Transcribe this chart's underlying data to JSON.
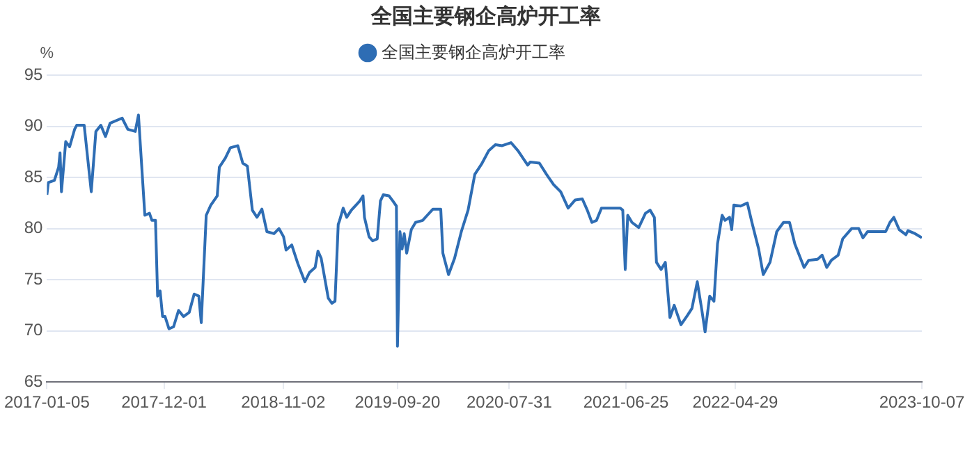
{
  "chart_data": {
    "type": "line",
    "title": "全国主要钢企高炉开工率",
    "ylabel": "%",
    "legend": "top",
    "grid": "y",
    "marker": "none",
    "ylim": [
      65,
      95
    ],
    "yticks": [
      65,
      70,
      75,
      80,
      85,
      90,
      95
    ],
    "xlim": [
      "2017-01-05",
      "2023-10-07"
    ],
    "xticks": [
      "2017-01-05",
      "2017-12-01",
      "2018-11-02",
      "2019-09-20",
      "2020-07-31",
      "2021-06-25",
      "2022-04-29",
      "2023-10-07"
    ],
    "x": [
      "2017-01-05",
      "2017-01-09",
      "2017-01-26",
      "2017-02-07",
      "2017-02-11",
      "2017-02-15",
      "2017-02-27",
      "2017-03-10",
      "2017-03-24",
      "2017-03-30",
      "2017-04-20",
      "2017-05-10",
      "2017-05-23",
      "2017-06-06",
      "2017-06-19",
      "2017-07-02",
      "2017-08-05",
      "2017-08-21",
      "2017-09-11",
      "2017-09-20",
      "2017-10-08",
      "2017-10-21",
      "2017-10-28",
      "2017-11-07",
      "2017-11-13",
      "2017-11-20",
      "2017-11-27",
      "2017-12-04",
      "2017-12-15",
      "2017-12-28",
      "2018-01-11",
      "2018-01-25",
      "2018-02-10",
      "2018-02-24",
      "2018-03-09",
      "2018-03-16",
      "2018-03-30",
      "2018-04-12",
      "2018-04-30",
      "2018-05-06",
      "2018-05-23",
      "2018-06-06",
      "2018-06-27",
      "2018-07-11",
      "2018-07-24",
      "2018-08-07",
      "2018-08-20",
      "2018-09-03",
      "2018-09-17",
      "2018-10-07",
      "2018-10-21",
      "2018-11-03",
      "2018-11-10",
      "2018-11-26",
      "2018-12-13",
      "2019-01-02",
      "2019-01-15",
      "2019-01-31",
      "2019-02-08",
      "2019-02-17",
      "2019-03-09",
      "2019-03-19",
      "2019-03-28",
      "2019-04-06",
      "2019-04-10",
      "2019-04-20",
      "2019-04-30",
      "2019-05-13",
      "2019-06-06",
      "2019-06-15",
      "2019-06-19",
      "2019-07-02",
      "2019-07-12",
      "2019-07-25",
      "2019-08-03",
      "2019-08-11",
      "2019-08-27",
      "2019-09-07",
      "2019-09-17",
      "2019-09-20",
      "2019-09-27",
      "2019-10-03",
      "2019-10-09",
      "2019-10-16",
      "2019-10-29",
      "2019-11-10",
      "2019-11-30",
      "2019-12-13",
      "2019-12-29",
      "2020-01-20",
      "2020-01-26",
      "2020-02-11",
      "2020-02-28",
      "2020-03-18",
      "2020-04-06",
      "2020-04-25",
      "2020-05-14",
      "2020-06-03",
      "2020-06-22",
      "2020-07-11",
      "2020-08-05",
      "2020-08-25",
      "2020-09-21",
      "2020-09-28",
      "2020-10-24",
      "2020-11-13",
      "2020-12-03",
      "2020-12-23",
      "2021-01-13",
      "2021-02-02",
      "2021-02-22",
      "2021-03-08",
      "2021-03-21",
      "2021-04-03",
      "2021-04-17",
      "2021-06-09",
      "2021-06-16",
      "2021-06-23",
      "2021-06-30",
      "2021-07-12",
      "2021-07-31",
      "2021-08-19",
      "2021-09-01",
      "2021-09-13",
      "2021-09-19",
      "2021-10-02",
      "2021-10-14",
      "2021-10-27",
      "2021-11-08",
      "2021-11-27",
      "2021-12-15",
      "2021-12-28",
      "2022-01-12",
      "2022-01-25",
      "2022-02-03",
      "2022-02-16",
      "2022-02-28",
      "2022-03-10",
      "2022-03-23",
      "2022-03-31",
      "2022-04-13",
      "2022-04-19",
      "2022-04-25",
      "2022-05-14",
      "2022-06-02",
      "2022-06-15",
      "2022-07-04",
      "2022-07-17",
      "2022-08-05",
      "2022-08-24",
      "2022-09-12",
      "2022-09-29",
      "2022-10-14",
      "2022-11-09",
      "2022-11-22",
      "2022-12-17",
      "2022-12-30",
      "2023-01-12",
      "2023-01-25",
      "2023-02-13",
      "2023-02-26",
      "2023-03-23",
      "2023-04-12",
      "2023-04-24",
      "2023-05-07",
      "2023-06-02",
      "2023-06-27",
      "2023-07-09",
      "2023-07-20",
      "2023-08-04",
      "2023-08-23",
      "2023-08-29",
      "2023-09-18",
      "2023-10-07"
    ],
    "series": [
      {
        "name": "全国主要钢企高炉开工率",
        "color": "#2e6db4",
        "values": [
          83.3,
          84.5,
          84.7,
          86,
          87.4,
          83.6,
          88.5,
          88,
          89.7,
          90.1,
          90.1,
          83.6,
          89.5,
          90.1,
          89,
          90.3,
          90.8,
          89.7,
          89.5,
          91.1,
          81.3,
          81.5,
          80.8,
          80.8,
          73.4,
          73.9,
          71.4,
          71.4,
          70.2,
          70.4,
          72,
          71.4,
          71.8,
          73.6,
          73.4,
          70.8,
          81.3,
          82.3,
          83.2,
          86,
          86.9,
          87.9,
          88.1,
          86.4,
          86.1,
          81.8,
          81.1,
          81.9,
          79.7,
          79.5,
          80,
          79.2,
          77.9,
          78.4,
          76.6,
          74.8,
          75.7,
          76.2,
          77.8,
          77.1,
          73.2,
          72.7,
          72.9,
          80.4,
          80.8,
          82,
          81.1,
          81.8,
          82.7,
          83.2,
          81.1,
          79.2,
          78.8,
          79,
          82.7,
          83.3,
          83.2,
          82.7,
          82.2,
          68.5,
          79.7,
          78,
          79.5,
          77.6,
          79.9,
          80.6,
          80.8,
          81.3,
          81.9,
          81.9,
          77.6,
          75.5,
          77.1,
          79.7,
          81.8,
          85.3,
          86.3,
          87.6,
          88.2,
          88.1,
          88.4,
          87.6,
          86.2,
          86.5,
          86.4,
          85.3,
          84.3,
          83.6,
          82,
          82.8,
          82.9,
          81.8,
          80.6,
          80.8,
          82,
          82,
          81.8,
          76,
          81.3,
          80.6,
          80.1,
          81.5,
          81.8,
          81.1,
          76.7,
          76,
          76.7,
          71.3,
          72.5,
          70.6,
          71.5,
          72.2,
          74.8,
          72,
          69.9,
          73.4,
          72.9,
          78.5,
          81.3,
          80.8,
          81.1,
          79.9,
          82.3,
          82.2,
          82.5,
          80.6,
          78,
          75.5,
          76.7,
          79.7,
          80.6,
          80.6,
          78.5,
          76.2,
          76.9,
          77,
          77.4,
          76.2,
          76.9,
          77.4,
          79,
          80,
          80,
          79.1,
          79.7,
          79.7,
          79.7,
          80.6,
          81.1,
          79.9,
          79.4,
          79.8,
          79.5,
          79.1
        ]
      }
    ]
  }
}
